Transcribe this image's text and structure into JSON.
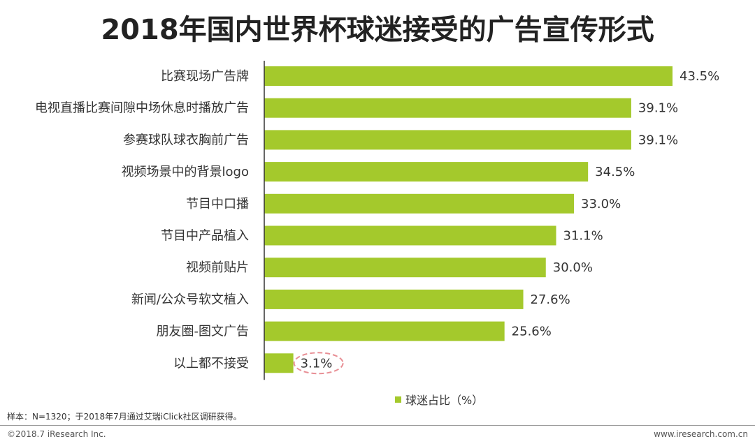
{
  "colors": {
    "bar": "#a4c92c",
    "axis": "#333333",
    "highlight_circle": "#e88f95"
  },
  "footer": {
    "note": "样本：N=1320；于2018年7月通过艾瑞iClick社区调研获得。",
    "copyright": "©2018.7 iResearch Inc.",
    "website": "www.iresearch.com.cn"
  },
  "chart_data": {
    "type": "bar",
    "orientation": "horizontal",
    "title": "2018年国内世界杯球迷接受的广告宣传形式",
    "categories": [
      "比赛现场广告牌",
      "电视直播比赛间隙中场休息时播放广告",
      "参赛球队球衣胸前广告",
      "视频场景中的背景logo",
      "节目中口播",
      "节目中产品植入",
      "视频前贴片",
      "新闻/公众号软文植入",
      "朋友圈-图文广告",
      "以上都不接受"
    ],
    "series": [
      {
        "name": "球迷占比（%）",
        "values": [
          43.5,
          39.1,
          39.1,
          34.5,
          33.0,
          31.1,
          30.0,
          27.6,
          25.6,
          3.1
        ]
      }
    ],
    "data_labels": [
      "43.5%",
      "39.1%",
      "39.1%",
      "34.5%",
      "33.0%",
      "31.1%",
      "30.0%",
      "27.6%",
      "25.6%",
      "3.1%"
    ],
    "xlim": [
      0,
      43.5
    ],
    "grid": false,
    "legend": "bottom-center",
    "highlighted_category": "以上都不接受"
  }
}
